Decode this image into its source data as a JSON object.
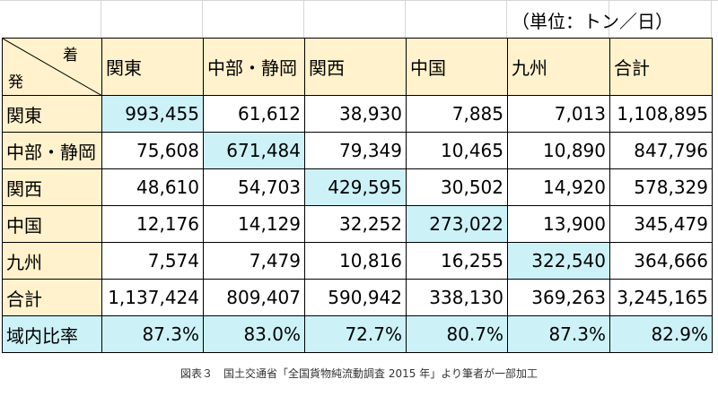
{
  "unit_label": "（単位：トン／日）",
  "corner": {
    "arrive": "着",
    "depart": "発"
  },
  "columns": [
    "関東",
    "中部・静岡",
    "関西",
    "中国",
    "九州",
    "合計"
  ],
  "rows": [
    {
      "label": "関東",
      "values": [
        "993,455",
        "61,612",
        "38,930",
        "7,885",
        "7,013",
        "1,108,895"
      ]
    },
    {
      "label": "中部・静岡",
      "values": [
        "75,608",
        "671,484",
        "79,349",
        "10,465",
        "10,890",
        "847,796"
      ]
    },
    {
      "label": "関西",
      "values": [
        "48,610",
        "54,703",
        "429,595",
        "30,502",
        "14,920",
        "578,329"
      ]
    },
    {
      "label": "中国",
      "values": [
        "12,176",
        "14,129",
        "32,252",
        "273,022",
        "13,900",
        "345,479"
      ]
    },
    {
      "label": "九州",
      "values": [
        "7,574",
        "7,479",
        "10,816",
        "16,255",
        "322,540",
        "364,666"
      ]
    }
  ],
  "total_row": {
    "label": "合計",
    "values": [
      "1,137,424",
      "809,407",
      "590,942",
      "338,130",
      "369,263",
      "3,245,165"
    ]
  },
  "ratio_row": {
    "label": "域内比率",
    "values": [
      "87.3%",
      "83.0%",
      "72.7%",
      "80.7%",
      "87.3%",
      "82.9%"
    ]
  },
  "caption": "図表３　国土交通省「全国貨物純流動調査 2015 年」より筆者が一部加工",
  "colors": {
    "header_fill": "#fff2cc",
    "highlight_fill": "#ccf2f8",
    "border": "#000000"
  }
}
